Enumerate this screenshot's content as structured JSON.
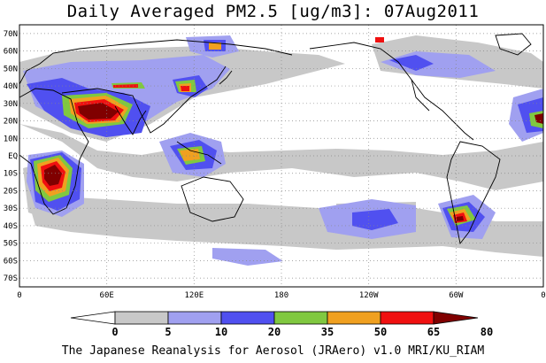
{
  "title": "Daily Averaged PM2.5 [ug/m3]: 07Aug2011",
  "footer": "The Japanese Reanalysis for Aerosol (JRAero) v1.0 MRI/KU_RIAM",
  "map": {
    "lon_labels": [
      "0",
      "60E",
      "120E",
      "180",
      "120W",
      "60W",
      "0"
    ],
    "lat_labels": [
      "70N",
      "60N",
      "50N",
      "40N",
      "30N",
      "20N",
      "10N",
      "EQ",
      "10S",
      "20S",
      "30S",
      "40S",
      "50S",
      "60S",
      "70S"
    ],
    "lon_range": [
      0,
      360
    ],
    "lat_range": [
      -75,
      75
    ],
    "gridlines": true
  },
  "colorbar": {
    "levels": [
      "0",
      "5",
      "10",
      "20",
      "35",
      "50",
      "65",
      "80"
    ],
    "colors": [
      "#ffffff",
      "#c8c8c8",
      "#a0a0f0",
      "#5050f0",
      "#80c840",
      "#f0a020",
      "#f01010",
      "#800000"
    ]
  }
}
